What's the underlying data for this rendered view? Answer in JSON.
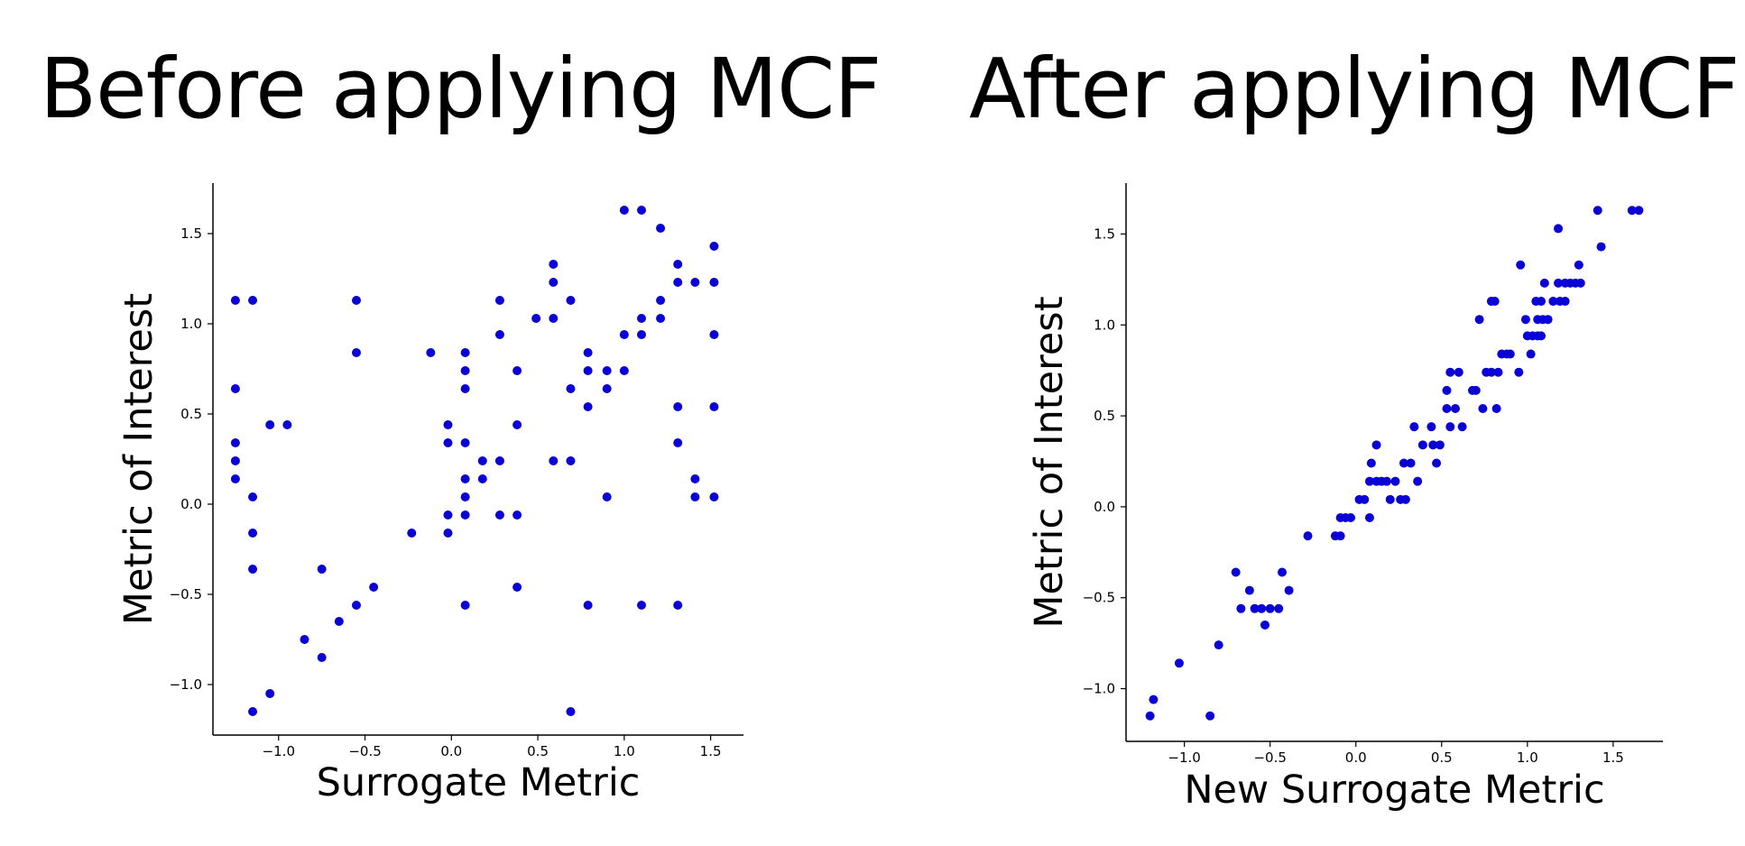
{
  "panels": {
    "left_title": "Before applying MCF",
    "right_title": "After applying MCF"
  },
  "colors": {
    "points": "#0a00d6",
    "axis": "#000000"
  },
  "chart_data": [
    {
      "type": "scatter",
      "title": "Before applying MCF",
      "xlabel": "Surrogate Metric",
      "ylabel": "Metric of Interest",
      "xlim": [
        -1.38,
        1.69
      ],
      "ylim": [
        -1.28,
        1.78
      ],
      "xticks": [
        -1.0,
        -0.5,
        0.0,
        0.5,
        1.0,
        1.5
      ],
      "xtick_labels": [
        "−1.0",
        "−0.5",
        "0.0",
        "0.5",
        "1.0",
        "1.5"
      ],
      "yticks": [
        -1.0,
        -0.5,
        0.0,
        0.5,
        1.0,
        1.5
      ],
      "ytick_labels": [
        "−1.0",
        "−0.5",
        "0.0",
        "0.5",
        "1.0",
        "1.5"
      ],
      "grid": false,
      "points": [
        [
          -1.25,
          1.13
        ],
        [
          -1.15,
          1.13
        ],
        [
          -1.25,
          0.64
        ],
        [
          -1.25,
          0.34
        ],
        [
          -1.25,
          0.24
        ],
        [
          -1.25,
          0.14
        ],
        [
          -1.15,
          0.04
        ],
        [
          -1.15,
          -0.16
        ],
        [
          -1.15,
          -0.36
        ],
        [
          -1.15,
          -1.15
        ],
        [
          -1.05,
          0.44
        ],
        [
          -0.95,
          0.44
        ],
        [
          -1.05,
          -1.05
        ],
        [
          -0.85,
          -0.75
        ],
        [
          -0.75,
          -0.85
        ],
        [
          -0.75,
          -0.36
        ],
        [
          -0.65,
          -0.65
        ],
        [
          -0.55,
          -0.56
        ],
        [
          -0.55,
          0.84
        ],
        [
          -0.55,
          1.13
        ],
        [
          -0.45,
          -0.46
        ],
        [
          -0.23,
          -0.16
        ],
        [
          -0.12,
          0.84
        ],
        [
          -0.02,
          0.44
        ],
        [
          -0.02,
          0.34
        ],
        [
          -0.02,
          -0.06
        ],
        [
          -0.02,
          -0.16
        ],
        [
          0.08,
          0.84
        ],
        [
          0.08,
          0.74
        ],
        [
          0.08,
          0.64
        ],
        [
          0.08,
          0.34
        ],
        [
          0.08,
          0.14
        ],
        [
          0.08,
          0.04
        ],
        [
          0.08,
          -0.06
        ],
        [
          0.08,
          -0.56
        ],
        [
          0.18,
          0.24
        ],
        [
          0.18,
          0.14
        ],
        [
          0.28,
          1.13
        ],
        [
          0.28,
          0.94
        ],
        [
          0.28,
          0.24
        ],
        [
          0.28,
          -0.06
        ],
        [
          0.38,
          0.74
        ],
        [
          0.38,
          0.44
        ],
        [
          0.38,
          -0.06
        ],
        [
          0.38,
          -0.46
        ],
        [
          0.49,
          1.03
        ],
        [
          0.59,
          1.33
        ],
        [
          0.59,
          1.23
        ],
        [
          0.59,
          1.03
        ],
        [
          0.59,
          0.24
        ],
        [
          0.69,
          1.13
        ],
        [
          0.69,
          0.64
        ],
        [
          0.69,
          0.24
        ],
        [
          0.69,
          -1.15
        ],
        [
          0.79,
          0.84
        ],
        [
          0.79,
          0.74
        ],
        [
          0.79,
          0.54
        ],
        [
          0.79,
          -0.56
        ],
        [
          0.9,
          0.74
        ],
        [
          0.9,
          0.64
        ],
        [
          0.9,
          0.04
        ],
        [
          1.0,
          1.63
        ],
        [
          1.0,
          0.94
        ],
        [
          1.0,
          0.74
        ],
        [
          1.1,
          1.63
        ],
        [
          1.1,
          1.03
        ],
        [
          1.1,
          0.94
        ],
        [
          1.1,
          -0.56
        ],
        [
          1.21,
          1.53
        ],
        [
          1.21,
          1.13
        ],
        [
          1.21,
          1.03
        ],
        [
          1.31,
          1.33
        ],
        [
          1.31,
          1.23
        ],
        [
          1.31,
          0.54
        ],
        [
          1.31,
          0.34
        ],
        [
          1.31,
          -0.56
        ],
        [
          1.41,
          1.23
        ],
        [
          1.41,
          0.14
        ],
        [
          1.41,
          0.04
        ],
        [
          1.52,
          1.43
        ],
        [
          1.52,
          1.23
        ],
        [
          1.52,
          0.94
        ],
        [
          1.52,
          0.54
        ],
        [
          1.52,
          0.04
        ]
      ]
    },
    {
      "type": "scatter",
      "title": "After applying MCF",
      "xlabel": "New Surrogate Metric",
      "ylabel": "Metric of Interest",
      "xlim": [
        -1.34,
        1.79
      ],
      "ylim": [
        -1.29,
        1.78
      ],
      "xticks": [
        -1.0,
        -0.5,
        0.0,
        0.5,
        1.0,
        1.5
      ],
      "xtick_labels": [
        "−1.0",
        "−0.5",
        "0.0",
        "0.5",
        "1.0",
        "1.5"
      ],
      "yticks": [
        -1.0,
        -0.5,
        0.0,
        0.5,
        1.0,
        1.5
      ],
      "ytick_labels": [
        "−1.0",
        "−0.5",
        "0.0",
        "0.5",
        "1.0",
        "1.5"
      ],
      "grid": false,
      "points": [
        [
          -1.2,
          -1.15
        ],
        [
          -1.18,
          -1.06
        ],
        [
          -1.03,
          -0.86
        ],
        [
          -0.85,
          -1.15
        ],
        [
          -0.8,
          -0.76
        ],
        [
          -0.7,
          -0.36
        ],
        [
          -0.67,
          -0.56
        ],
        [
          -0.62,
          -0.46
        ],
        [
          -0.59,
          -0.56
        ],
        [
          -0.55,
          -0.56
        ],
        [
          -0.53,
          -0.65
        ],
        [
          -0.5,
          -0.56
        ],
        [
          -0.45,
          -0.56
        ],
        [
          -0.43,
          -0.36
        ],
        [
          -0.39,
          -0.46
        ],
        [
          -0.28,
          -0.16
        ],
        [
          -0.12,
          -0.16
        ],
        [
          -0.09,
          -0.16
        ],
        [
          -0.09,
          -0.06
        ],
        [
          -0.06,
          -0.06
        ],
        [
          -0.03,
          -0.06
        ],
        [
          0.02,
          0.04
        ],
        [
          0.05,
          0.04
        ],
        [
          0.08,
          -0.06
        ],
        [
          0.08,
          0.14
        ],
        [
          0.09,
          0.24
        ],
        [
          0.12,
          0.34
        ],
        [
          0.12,
          0.14
        ],
        [
          0.15,
          0.14
        ],
        [
          0.18,
          0.14
        ],
        [
          0.2,
          0.04
        ],
        [
          0.23,
          0.14
        ],
        [
          0.26,
          0.04
        ],
        [
          0.28,
          0.24
        ],
        [
          0.29,
          0.04
        ],
        [
          0.32,
          0.24
        ],
        [
          0.34,
          0.44
        ],
        [
          0.36,
          0.14
        ],
        [
          0.39,
          0.34
        ],
        [
          0.44,
          0.44
        ],
        [
          0.45,
          0.34
        ],
        [
          0.47,
          0.24
        ],
        [
          0.49,
          0.34
        ],
        [
          0.53,
          0.54
        ],
        [
          0.53,
          0.64
        ],
        [
          0.55,
          0.74
        ],
        [
          0.55,
          0.44
        ],
        [
          0.58,
          0.54
        ],
        [
          0.6,
          0.74
        ],
        [
          0.62,
          0.44
        ],
        [
          0.68,
          0.64
        ],
        [
          0.7,
          0.64
        ],
        [
          0.72,
          1.03
        ],
        [
          0.74,
          0.54
        ],
        [
          0.76,
          0.74
        ],
        [
          0.79,
          0.74
        ],
        [
          0.79,
          1.13
        ],
        [
          0.81,
          1.13
        ],
        [
          0.82,
          0.54
        ],
        [
          0.83,
          0.74
        ],
        [
          0.85,
          0.84
        ],
        [
          0.88,
          0.84
        ],
        [
          0.9,
          0.84
        ],
        [
          0.95,
          0.74
        ],
        [
          0.96,
          1.33
        ],
        [
          0.99,
          1.03
        ],
        [
          1.0,
          0.94
        ],
        [
          1.02,
          0.84
        ],
        [
          1.03,
          0.94
        ],
        [
          1.05,
          1.13
        ],
        [
          1.06,
          0.94
        ],
        [
          1.06,
          1.03
        ],
        [
          1.08,
          1.13
        ],
        [
          1.08,
          0.94
        ],
        [
          1.09,
          1.03
        ],
        [
          1.1,
          1.23
        ],
        [
          1.12,
          1.03
        ],
        [
          1.15,
          1.13
        ],
        [
          1.18,
          1.53
        ],
        [
          1.18,
          1.23
        ],
        [
          1.19,
          1.13
        ],
        [
          1.22,
          1.23
        ],
        [
          1.22,
          1.13
        ],
        [
          1.25,
          1.23
        ],
        [
          1.28,
          1.23
        ],
        [
          1.3,
          1.33
        ],
        [
          1.31,
          1.23
        ],
        [
          1.41,
          1.63
        ],
        [
          1.43,
          1.43
        ],
        [
          1.61,
          1.63
        ],
        [
          1.65,
          1.63
        ]
      ]
    }
  ]
}
